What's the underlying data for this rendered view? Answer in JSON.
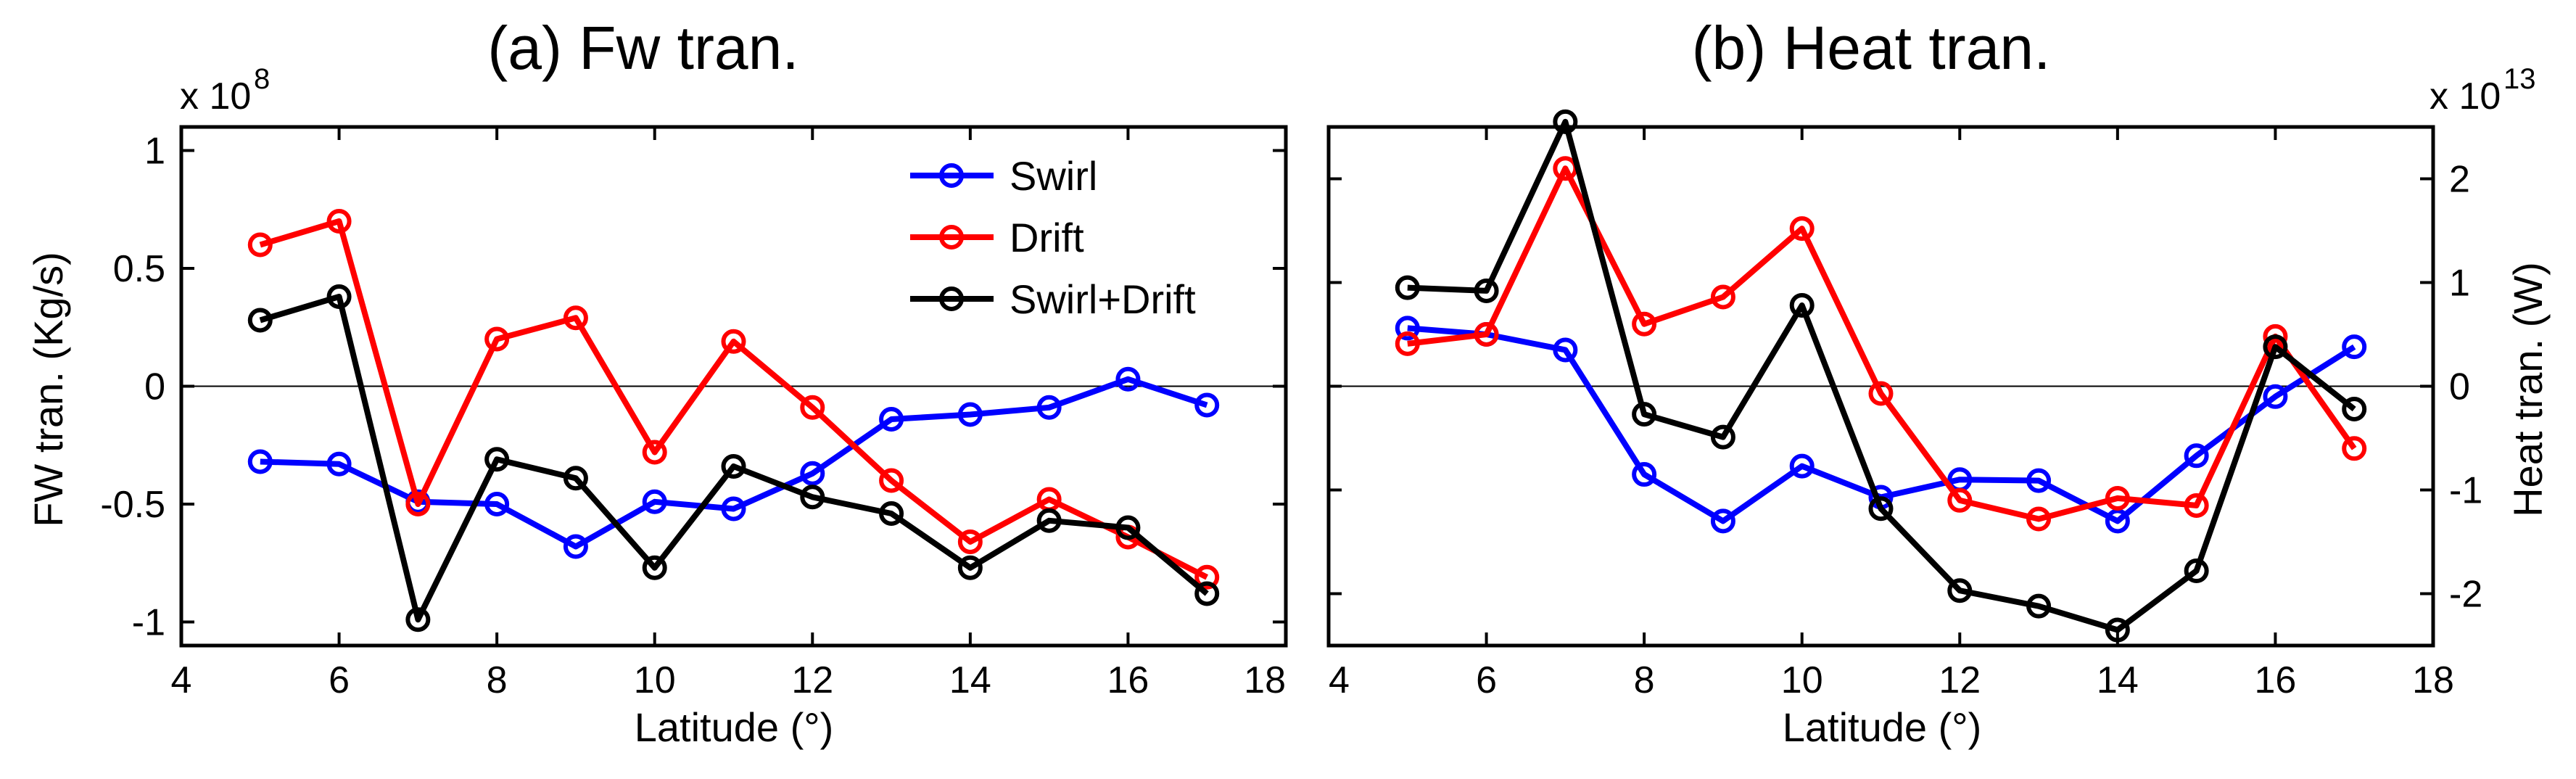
{
  "chart_data": [
    {
      "type": "line",
      "title": "(a) Fw tran.",
      "xlabel": "Latitude (°)",
      "ylabel": "FW tran. (Kg/s)",
      "y_exponent_base": "x 10",
      "y_exponent_power": "8",
      "xlim": [
        4,
        18
      ],
      "ylim": [
        -1.1,
        1.1
      ],
      "xticks": [
        4,
        6,
        8,
        10,
        12,
        14,
        16,
        18
      ],
      "yticks": [
        -1,
        -0.5,
        0,
        0.5,
        1
      ],
      "x": [
        5,
        6,
        7,
        8,
        9,
        10,
        11,
        12,
        13,
        14,
        15,
        16,
        17
      ],
      "series": [
        {
          "name": "Swirl",
          "color": "#0000ff",
          "values": [
            -0.32,
            -0.33,
            -0.49,
            -0.5,
            -0.68,
            -0.49,
            -0.52,
            -0.37,
            -0.14,
            -0.12,
            -0.09,
            0.03,
            -0.08
          ]
        },
        {
          "name": "Drift",
          "color": "#ff0000",
          "values": [
            0.6,
            0.7,
            -0.5,
            0.2,
            0.29,
            -0.28,
            0.19,
            -0.09,
            -0.4,
            -0.66,
            -0.48,
            -0.64,
            -0.81
          ]
        },
        {
          "name": "Swirl+Drift",
          "color": "#000000",
          "values": [
            0.28,
            0.38,
            -0.99,
            -0.31,
            -0.39,
            -0.77,
            -0.34,
            -0.47,
            -0.54,
            -0.77,
            -0.57,
            -0.6,
            -0.88
          ]
        }
      ],
      "legend": {
        "placement": "top-right",
        "entries": [
          "Swirl",
          "Drift",
          "Swirl+Drift"
        ]
      }
    },
    {
      "type": "line",
      "title": "(b) Heat tran.",
      "xlabel": "Latitude (°)",
      "ylabel": "Heat tran. (W)",
      "y_exponent_base": "x 10",
      "y_exponent_power": "13",
      "xlim": [
        4,
        18
      ],
      "ylim": [
        -2.5,
        2.5
      ],
      "xticks": [
        4,
        6,
        8,
        10,
        12,
        14,
        16,
        18
      ],
      "yticks": [
        -2,
        -1,
        0,
        1,
        2
      ],
      "x": [
        5,
        6,
        7,
        8,
        9,
        10,
        11,
        12,
        13,
        14,
        15,
        16,
        17
      ],
      "series": [
        {
          "name": "Swirl",
          "color": "#0000ff",
          "values": [
            0.56,
            0.5,
            0.35,
            -0.85,
            -1.3,
            -0.77,
            -1.07,
            -0.9,
            -0.91,
            -1.3,
            -0.67,
            -0.1,
            0.38
          ]
        },
        {
          "name": "Drift",
          "color": "#ff0000",
          "values": [
            0.41,
            0.5,
            2.1,
            0.6,
            0.86,
            1.52,
            -0.07,
            -1.1,
            -1.28,
            -1.08,
            -1.15,
            0.48,
            -0.6
          ]
        },
        {
          "name": "Swirl+Drift",
          "color": "#000000",
          "values": [
            0.95,
            0.92,
            2.55,
            -0.27,
            -0.49,
            0.78,
            -1.18,
            -1.97,
            -2.12,
            -2.35,
            -1.78,
            0.38,
            -0.22
          ]
        }
      ]
    }
  ]
}
